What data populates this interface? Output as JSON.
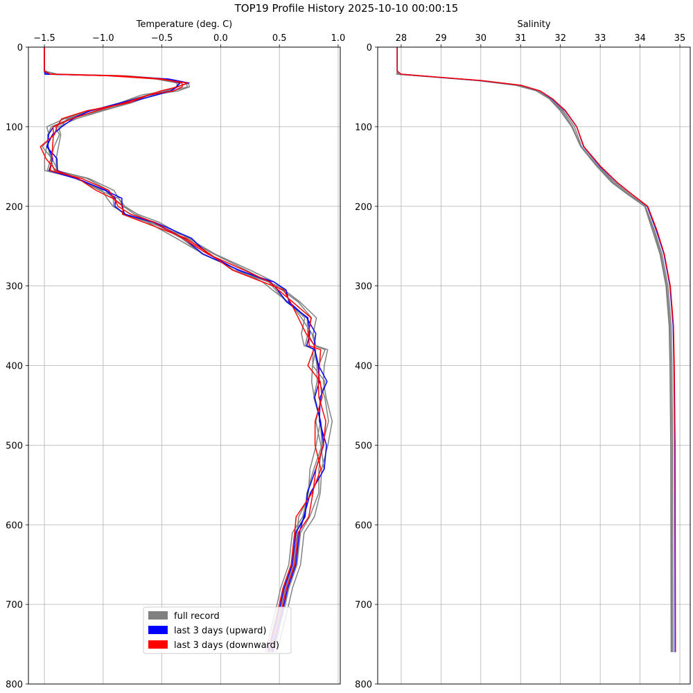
{
  "title": "TOP19 Profile History 2025-10-10 00:00:15",
  "legend": {
    "placement": "lower-center of left panel",
    "entries": [
      {
        "label": "full record",
        "color": "#808080"
      },
      {
        "label": "last 3 days (upward)",
        "color": "#0000ff"
      },
      {
        "label": "last 3 days (downward)",
        "color": "#ff0000"
      }
    ]
  },
  "chart_data": [
    {
      "type": "line",
      "title": "",
      "xlabel": "Temperature (deg. C)",
      "ylabel": "",
      "xlim": [
        -1.636,
        1.018
      ],
      "ylim": [
        800,
        0
      ],
      "x_ticks": [
        -1.5,
        -1.0,
        -0.5,
        0.0,
        0.5,
        1.0
      ],
      "x_tick_labels": [
        "−1.5",
        "−1.0",
        "−0.5",
        "0.0",
        "0.5",
        "1.0"
      ],
      "y_ticks": [
        0,
        100,
        200,
        300,
        400,
        500,
        600,
        700,
        800
      ],
      "grid": true,
      "depth": [
        0,
        30,
        34,
        36,
        40,
        45,
        50,
        55,
        60,
        70,
        80,
        90,
        100,
        110,
        125,
        140,
        155,
        165,
        180,
        190,
        200,
        210,
        220,
        240,
        260,
        280,
        295,
        305,
        320,
        340,
        360,
        375,
        380,
        400,
        420,
        440,
        470,
        500,
        530,
        560,
        590,
        610,
        650,
        680,
        700,
        730,
        760
      ],
      "base": [
        -1.5,
        -1.5,
        -1.45,
        -0.9,
        -0.5,
        -0.3,
        -0.35,
        -0.45,
        -0.6,
        -0.8,
        -1.1,
        -1.3,
        -1.4,
        -1.42,
        -1.48,
        -1.45,
        -1.42,
        -1.2,
        -1.0,
        -0.9,
        -0.85,
        -0.8,
        -0.6,
        -0.3,
        -0.1,
        0.15,
        0.4,
        0.52,
        0.6,
        0.72,
        0.75,
        0.78,
        0.82,
        0.8,
        0.85,
        0.85,
        0.85,
        0.85,
        0.84,
        0.78,
        0.7,
        0.65,
        0.62,
        0.55,
        0.52,
        0.47,
        0.42
      ],
      "series": [
        {
          "name": "full record",
          "color": "#808080",
          "offsets": [
            0,
            0.03,
            -0.04,
            0.06,
            -0.02
          ]
        },
        {
          "name": "last 3 days (upward)",
          "color": "#0000ff",
          "offsets": [
            0.02,
            -0.01
          ]
        },
        {
          "name": "last 3 days (downward)",
          "color": "#ff0000",
          "offsets": [
            -0.02,
            0.01
          ]
        }
      ]
    },
    {
      "type": "line",
      "title": "",
      "xlabel": "Salinity",
      "ylabel": "",
      "xlim": [
        27.41,
        35.26
      ],
      "ylim": [
        800,
        0
      ],
      "x_ticks": [
        28,
        29,
        30,
        31,
        32,
        33,
        34,
        35
      ],
      "x_tick_labels": [
        "28",
        "29",
        "30",
        "31",
        "32",
        "33",
        "34",
        "35"
      ],
      "y_ticks": [
        0,
        100,
        200,
        300,
        400,
        500,
        600,
        700,
        800
      ],
      "grid": true,
      "depth": [
        0,
        30,
        34,
        38,
        42,
        48,
        55,
        65,
        80,
        100,
        125,
        150,
        170,
        185,
        200,
        230,
        260,
        300,
        350,
        400,
        500,
        760
      ],
      "base": [
        27.9,
        27.9,
        28.0,
        29.0,
        30.0,
        31.0,
        31.5,
        31.8,
        32.1,
        32.4,
        32.6,
        33.0,
        33.4,
        33.8,
        34.2,
        34.4,
        34.6,
        34.75,
        34.83,
        34.85,
        34.87,
        34.88
      ],
      "series": [
        {
          "name": "full record",
          "color": "#808080",
          "offsets": [
            -0.1,
            -0.05,
            -0.08
          ]
        },
        {
          "name": "last 3 days (upward)",
          "color": "#0000ff",
          "offsets": [
            0.0
          ]
        },
        {
          "name": "last 3 days (downward)",
          "color": "#ff0000",
          "offsets": [
            0.01
          ]
        }
      ]
    }
  ]
}
